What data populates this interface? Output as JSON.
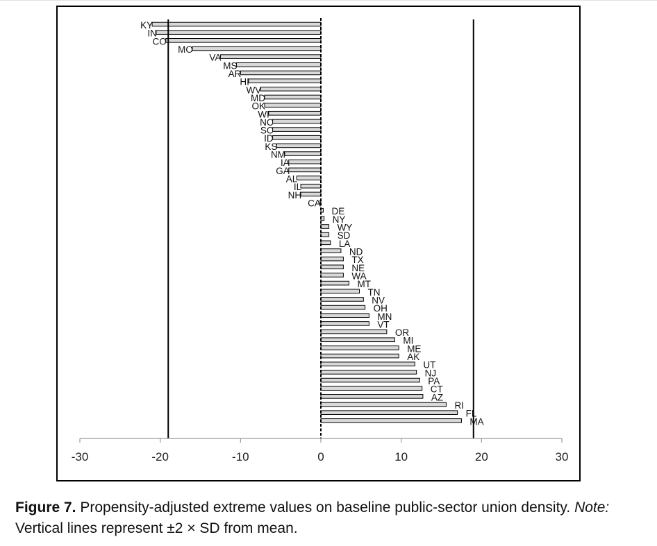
{
  "chart_data": {
    "type": "bar",
    "orientation": "horizontal",
    "xlim": [
      -30,
      30
    ],
    "x_ticks": [
      -30,
      -20,
      -10,
      0,
      10,
      20,
      30
    ],
    "grid": false,
    "legend": "none",
    "reference_lines": [
      -19,
      0,
      19
    ],
    "categories": [
      "KY",
      "IN",
      "CO",
      "MO",
      "VA",
      "MS",
      "AR",
      "HI",
      "WV",
      "MD",
      "OK",
      "WI",
      "NC",
      "SC",
      "ID",
      "KS",
      "NM",
      "IA",
      "GA",
      "AL",
      "IL",
      "NH",
      "CA",
      "DE",
      "NY",
      "WY",
      "SD",
      "LA",
      "ND",
      "TX",
      "NE",
      "WA",
      "MT",
      "TN",
      "NV",
      "OH",
      "MN",
      "VT",
      "OR",
      "MI",
      "ME",
      "AK",
      "UT",
      "NJ",
      "PA",
      "CT",
      "AZ",
      "RI",
      "FL",
      "MA"
    ],
    "values": [
      -21,
      -20.5,
      -19.3,
      -16,
      -12.5,
      -10.5,
      -10,
      -9,
      -7.5,
      -7,
      -7,
      -6.5,
      -6,
      -6,
      -6,
      -5.5,
      -4.5,
      -4,
      -4,
      -3,
      -2.5,
      -2.5,
      -0.1,
      0.3,
      0.4,
      1,
      1,
      1.2,
      2.5,
      2.8,
      2.8,
      2.8,
      3.5,
      4.8,
      5.3,
      5.5,
      6,
      6,
      8.2,
      9.2,
      9.7,
      9.7,
      11.7,
      11.9,
      12.3,
      12.6,
      12.7,
      15.6,
      17,
      17.5
    ],
    "bar_color": "#d9d9d9"
  },
  "caption": {
    "label": "Figure 7.",
    "text": "Propensity-adjusted extreme values on baseline public-sector union density.",
    "note_label": "Note:",
    "note_text": "Vertical lines represent ±2 × SD from mean."
  }
}
